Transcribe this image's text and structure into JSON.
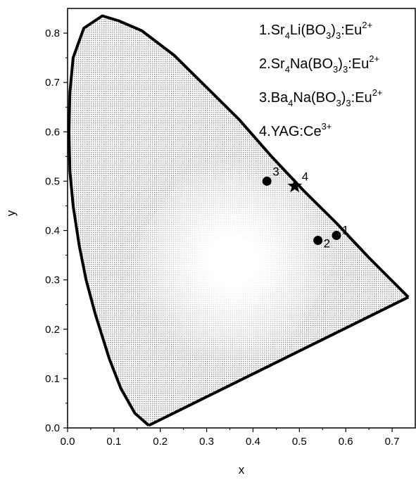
{
  "chart_data": {
    "type": "scatter",
    "xlabel": "x",
    "ylabel": "y",
    "xlim": [
      0.0,
      0.75
    ],
    "ylim": [
      0.0,
      0.85
    ],
    "xticks": [
      "0.0",
      "0.1",
      "0.2",
      "0.3",
      "0.4",
      "0.5",
      "0.6",
      "0.7"
    ],
    "yticks": [
      "0.0",
      "0.1",
      "0.2",
      "0.3",
      "0.4",
      "0.5",
      "0.6",
      "0.7",
      "0.8"
    ],
    "grid": false,
    "legend_placement": "top-right",
    "legend_entries": [
      {
        "number": "1.",
        "parts": [
          [
            "Sr",
            ""
          ],
          [
            "4",
            "sub"
          ],
          [
            "Li(BO",
            ""
          ],
          [
            "3",
            "sub"
          ],
          [
            ")",
            ""
          ],
          [
            "3",
            "sub"
          ],
          [
            ":Eu",
            ""
          ],
          [
            "2+",
            "sup"
          ]
        ]
      },
      {
        "number": "2.",
        "parts": [
          [
            "Sr",
            ""
          ],
          [
            "4",
            "sub"
          ],
          [
            "Na(BO",
            ""
          ],
          [
            "3",
            "sub"
          ],
          [
            ")",
            ""
          ],
          [
            "3",
            "sub"
          ],
          [
            ":Eu",
            ""
          ],
          [
            "2+",
            "sup"
          ]
        ]
      },
      {
        "number": "3.",
        "parts": [
          [
            "Ba",
            ""
          ],
          [
            "4",
            "sub"
          ],
          [
            "Na(BO",
            ""
          ],
          [
            "3",
            "sub"
          ],
          [
            ")",
            ""
          ],
          [
            "3",
            "sub"
          ],
          [
            ":Eu",
            ""
          ],
          [
            "2+",
            "sup"
          ]
        ]
      },
      {
        "number": "4.",
        "parts": [
          [
            "YAG:Ce",
            ""
          ],
          [
            "3+",
            "sup"
          ]
        ]
      }
    ],
    "points": [
      {
        "label": "1",
        "x": 0.58,
        "y": 0.39,
        "marker": "circle"
      },
      {
        "label": "2",
        "x": 0.54,
        "y": 0.38,
        "marker": "circle"
      },
      {
        "label": "3",
        "x": 0.43,
        "y": 0.5,
        "marker": "circle"
      },
      {
        "label": "4",
        "x": 0.49,
        "y": 0.49,
        "marker": "star"
      }
    ],
    "locus": [
      [
        0.175,
        0.005
      ],
      [
        0.145,
        0.03
      ],
      [
        0.115,
        0.08
      ],
      [
        0.09,
        0.14
      ],
      [
        0.06,
        0.23
      ],
      [
        0.04,
        0.3
      ],
      [
        0.025,
        0.37
      ],
      [
        0.012,
        0.45
      ],
      [
        0.005,
        0.52
      ],
      [
        0.003,
        0.6
      ],
      [
        0.005,
        0.68
      ],
      [
        0.012,
        0.75
      ],
      [
        0.035,
        0.81
      ],
      [
        0.075,
        0.835
      ],
      [
        0.11,
        0.825
      ],
      [
        0.16,
        0.805
      ],
      [
        0.23,
        0.755
      ],
      [
        0.3,
        0.69
      ],
      [
        0.37,
        0.625
      ],
      [
        0.44,
        0.55
      ],
      [
        0.51,
        0.48
      ],
      [
        0.58,
        0.415
      ],
      [
        0.65,
        0.345
      ],
      [
        0.735,
        0.265
      ]
    ],
    "purple_line": [
      [
        0.735,
        0.265
      ],
      [
        0.175,
        0.005
      ]
    ]
  },
  "colors": {
    "outline": "#000000",
    "dot_fill": "#8a8a8a",
    "center_fill": "#ffffff",
    "marker": "#000000"
  }
}
